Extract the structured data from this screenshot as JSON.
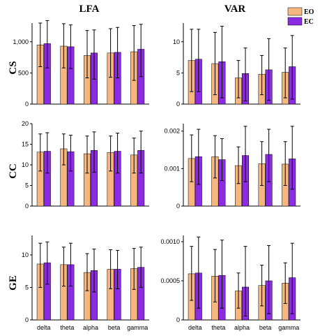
{
  "column_titles": [
    "LFA",
    "VAR"
  ],
  "row_titles": [
    "CS",
    "CC",
    "GE"
  ],
  "legend": [
    {
      "label": "EO",
      "color": "#F5B77F"
    },
    {
      "label": "EC",
      "color": "#8B2BE2"
    }
  ],
  "chart_data": [
    {
      "type": "bar",
      "row": "CS",
      "column": "LFA",
      "categories": [
        "delta",
        "theta",
        "alpha",
        "beta",
        "gamma"
      ],
      "ylim": [
        0,
        1300
      ],
      "yticks": [
        0,
        500,
        1000
      ],
      "ytick_labels": [
        "0",
        "500",
        "1,000"
      ],
      "series": [
        {
          "name": "EO",
          "values": [
            950,
            930,
            780,
            820,
            840
          ],
          "err_high": [
            1300,
            1290,
            1180,
            1210,
            1260
          ],
          "err_low": [
            600,
            580,
            420,
            430,
            380
          ]
        },
        {
          "name": "EC",
          "values": [
            970,
            920,
            820,
            830,
            880
          ],
          "err_high": [
            1340,
            1270,
            1190,
            1230,
            1280
          ],
          "err_low": [
            580,
            570,
            400,
            420,
            440
          ]
        }
      ]
    },
    {
      "type": "bar",
      "row": "CS",
      "column": "VAR",
      "categories": [
        "delta",
        "theta",
        "alpha",
        "beta",
        "gamma"
      ],
      "ylim": [
        0,
        13
      ],
      "yticks": [
        0,
        5,
        10
      ],
      "ytick_labels": [
        "0",
        "5",
        "10"
      ],
      "series": [
        {
          "name": "EO",
          "values": [
            7.0,
            6.5,
            4.2,
            4.8,
            5.1
          ],
          "err_high": [
            12.0,
            11.5,
            7.0,
            7.8,
            9.0
          ],
          "err_low": [
            2.0,
            1.5,
            1.0,
            1.5,
            1.0
          ]
        },
        {
          "name": "EC",
          "values": [
            7.2,
            6.8,
            4.9,
            5.5,
            6.0
          ],
          "err_high": [
            12.0,
            12.5,
            9.0,
            10.5,
            11.0
          ],
          "err_low": [
            2.0,
            1.0,
            0.5,
            0.6,
            0.8
          ]
        }
      ]
    },
    {
      "type": "bar",
      "row": "CC",
      "column": "LFA",
      "categories": [
        "delta",
        "theta",
        "alpha",
        "beta",
        "gamma"
      ],
      "ylim": [
        0,
        20
      ],
      "yticks": [
        0,
        5,
        10,
        15,
        20
      ],
      "ytick_labels": [
        "0",
        "5",
        "10",
        "15",
        "20"
      ],
      "series": [
        {
          "name": "EO",
          "values": [
            13.1,
            13.9,
            12.7,
            13.0,
            12.4
          ],
          "err_high": [
            17.5,
            17.5,
            17.0,
            17.0,
            16.5
          ],
          "err_low": [
            8.5,
            10.0,
            8.0,
            8.5,
            8.0
          ]
        },
        {
          "name": "EC",
          "values": [
            13.3,
            13.2,
            13.5,
            13.3,
            13.5
          ],
          "err_high": [
            17.8,
            17.2,
            18.0,
            17.7,
            18.2
          ],
          "err_low": [
            8.0,
            8.5,
            8.2,
            8.0,
            8.0
          ]
        }
      ]
    },
    {
      "type": "bar",
      "row": "CC",
      "column": "VAR",
      "categories": [
        "delta",
        "theta",
        "alpha",
        "beta",
        "gamma"
      ],
      "ylim": [
        0,
        0.0022
      ],
      "yticks": [
        0,
        0.001,
        0.002
      ],
      "ytick_labels": [
        "0",
        "0.001",
        "0.002"
      ],
      "series": [
        {
          "name": "EO",
          "values": [
            0.00127,
            0.00132,
            0.00108,
            0.00113,
            0.00112
          ],
          "err_high": [
            0.0019,
            0.00188,
            0.00158,
            0.00172,
            0.00172
          ],
          "err_low": [
            0.00065,
            0.00075,
            0.0006,
            0.00055,
            0.00055
          ]
        },
        {
          "name": "EC",
          "values": [
            0.00132,
            0.00124,
            0.00135,
            0.00138,
            0.00126
          ],
          "err_high": [
            0.00205,
            0.0018,
            0.00213,
            0.00205,
            0.00213
          ],
          "err_low": [
            0.00058,
            0.00068,
            0.00065,
            0.00065,
            0.00045
          ]
        }
      ]
    },
    {
      "type": "bar",
      "row": "GE",
      "column": "LFA",
      "categories": [
        "delta",
        "theta",
        "alpha",
        "beta",
        "gamma"
      ],
      "ylim": [
        0,
        13
      ],
      "yticks": [
        0,
        5,
        10
      ],
      "ytick_labels": [
        "0",
        "5",
        "10"
      ],
      "series": [
        {
          "name": "EO",
          "values": [
            8.6,
            8.5,
            7.3,
            7.8,
            7.9
          ],
          "err_high": [
            11.8,
            11.2,
            10.2,
            10.8,
            11.0
          ],
          "err_low": [
            5.0,
            5.2,
            4.5,
            4.8,
            4.7
          ]
        },
        {
          "name": "EC",
          "values": [
            8.8,
            8.5,
            7.6,
            7.8,
            8.1
          ],
          "err_high": [
            12.0,
            11.8,
            10.9,
            10.7,
            11.2
          ],
          "err_low": [
            5.5,
            5.2,
            4.3,
            4.8,
            5.0
          ]
        }
      ]
    },
    {
      "type": "bar",
      "row": "GE",
      "column": "VAR",
      "categories": [
        "delta",
        "theta",
        "alpha",
        "beta",
        "gamma"
      ],
      "ylim": [
        0,
        0.00108
      ],
      "yticks": [
        0,
        0.0005,
        0.001
      ],
      "ytick_labels": [
        "0",
        "0.0005",
        "0.0010"
      ],
      "series": [
        {
          "name": "EO",
          "values": [
            0.00059,
            0.00056,
            0.00037,
            0.00044,
            0.00047
          ],
          "err_high": [
            0.00094,
            0.0009,
            0.0006,
            0.0007,
            0.00073
          ],
          "err_low": [
            0.00025,
            0.00023,
            0.00015,
            0.00018,
            0.00021
          ]
        },
        {
          "name": "EC",
          "values": [
            0.0006,
            0.00057,
            0.00042,
            0.0005,
            0.00054
          ],
          "err_high": [
            0.00106,
            0.00102,
            0.00094,
            0.00095,
            0.00098
          ],
          "err_low": [
            0.00015,
            0.00015,
            5e-05,
            8e-05,
            8e-05
          ]
        }
      ]
    }
  ]
}
